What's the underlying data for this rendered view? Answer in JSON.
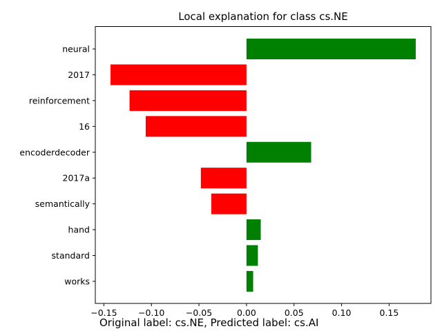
{
  "chart_data": {
    "type": "bar",
    "orientation": "horizontal",
    "title": "Local explanation for class cs.NE",
    "xlabel": "",
    "ylabel": "",
    "categories": [
      "neural",
      "2017",
      "reinforcement",
      "16",
      "encoderdecoder",
      "2017a",
      "semantically",
      "hand",
      "standard",
      "works"
    ],
    "values": [
      0.178,
      -0.143,
      -0.123,
      -0.106,
      0.068,
      -0.048,
      -0.037,
      0.015,
      0.012,
      0.007
    ],
    "xlim": [
      -0.159,
      0.194
    ],
    "xticks": [
      -0.15,
      -0.1,
      -0.05,
      0.0,
      0.05,
      0.1,
      0.15
    ],
    "xtick_labels": [
      "−0.15",
      "−0.10",
      "−0.05",
      "0.00",
      "0.05",
      "0.10",
      "0.15"
    ],
    "positive_color": "#008000",
    "negative_color": "#ff0000",
    "grid": false,
    "legend": "none"
  },
  "caption": "Original label: cs.NE, Predicted label: cs.AI"
}
